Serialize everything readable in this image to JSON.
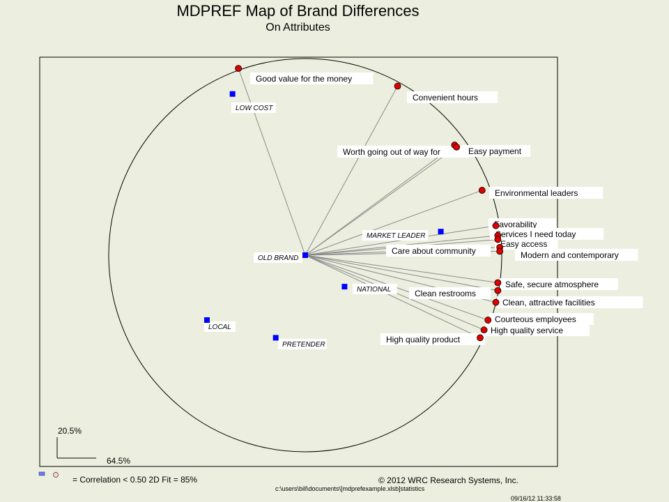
{
  "title": "MDPREF Map of Brand Differences",
  "subtitle": "On Attributes",
  "chart_data": {
    "type": "scatter",
    "method": "MDPREF biplot",
    "xlim": [
      -1.2,
      1.2
    ],
    "ylim": [
      -1.2,
      1.2
    ],
    "axis_scale_x": "64.5%",
    "axis_scale_y": "20.5%",
    "grid": false,
    "brands_center": "OLD BRAND",
    "brands": [
      {
        "name": "LOW COST",
        "x": -0.37,
        "y": 0.82,
        "color": "#0000ff"
      },
      {
        "name": "MARKET LEADER",
        "x": 0.69,
        "y": 0.12,
        "color": "#0000ff"
      },
      {
        "name": "OLD BRAND",
        "x": 0.0,
        "y": 0.0,
        "color": "#0000ff"
      },
      {
        "name": "NATIONAL",
        "x": 0.2,
        "y": -0.16,
        "color": "#0000ff"
      },
      {
        "name": "LOCAL",
        "x": -0.5,
        "y": -0.33,
        "color": "#0000ff"
      },
      {
        "name": "PRETENDER",
        "x": -0.15,
        "y": -0.42,
        "color": "#0000ff"
      }
    ],
    "attributes": [
      {
        "name": "Good value for the money",
        "x": -0.34,
        "y": 0.95,
        "ok": false
      },
      {
        "name": "Convenient  hours",
        "x": 0.47,
        "y": 0.86
      },
      {
        "name": "Worth going out of way for",
        "x": 0.76,
        "y": 0.56
      },
      {
        "name": "Easy payment",
        "x": 0.77,
        "y": 0.55
      },
      {
        "name": "Environmental  leaders",
        "x": 0.9,
        "y": 0.33
      },
      {
        "name": "Favorability",
        "x": 0.97,
        "y": 0.15
      },
      {
        "name": "Services  I need today",
        "x": 0.98,
        "y": 0.1
      },
      {
        "name": "Easy access",
        "x": 0.98,
        "y": 0.08
      },
      {
        "name": "Care about community",
        "x": 0.99,
        "y": 0.04
      },
      {
        "name": "Modern  and contemporary",
        "x": 0.99,
        "y": 0.02
      },
      {
        "name": "Safe, secure atmosphere",
        "x": 0.98,
        "y": -0.14
      },
      {
        "name": "Clean restrooms",
        "x": 0.98,
        "y": -0.18
      },
      {
        "name": "Clean,  attractive facilities",
        "x": 0.97,
        "y": -0.24
      },
      {
        "name": "Courteous  employees",
        "x": 0.93,
        "y": -0.33
      },
      {
        "name": "High quality service",
        "x": 0.91,
        "y": -0.38
      },
      {
        "name": "High quality product",
        "x": 0.89,
        "y": -0.42
      }
    ]
  },
  "legend": {
    "correlation_text": "= Correlation  < 0.50  2D Fit = 85%"
  },
  "footer": {
    "copyright": "© 2012 WRC Research Systems, Inc.",
    "path": "c:\\users\\bill\\documents\\[mdprefexample.xlsb]statistics",
    "timestamp": "09/16/12 11:33:58"
  },
  "colors": {
    "background": "#ecefdf",
    "attribute_point": "#e00000",
    "brand_point": "#0000ff",
    "vector_line": "#8a8a8a"
  }
}
